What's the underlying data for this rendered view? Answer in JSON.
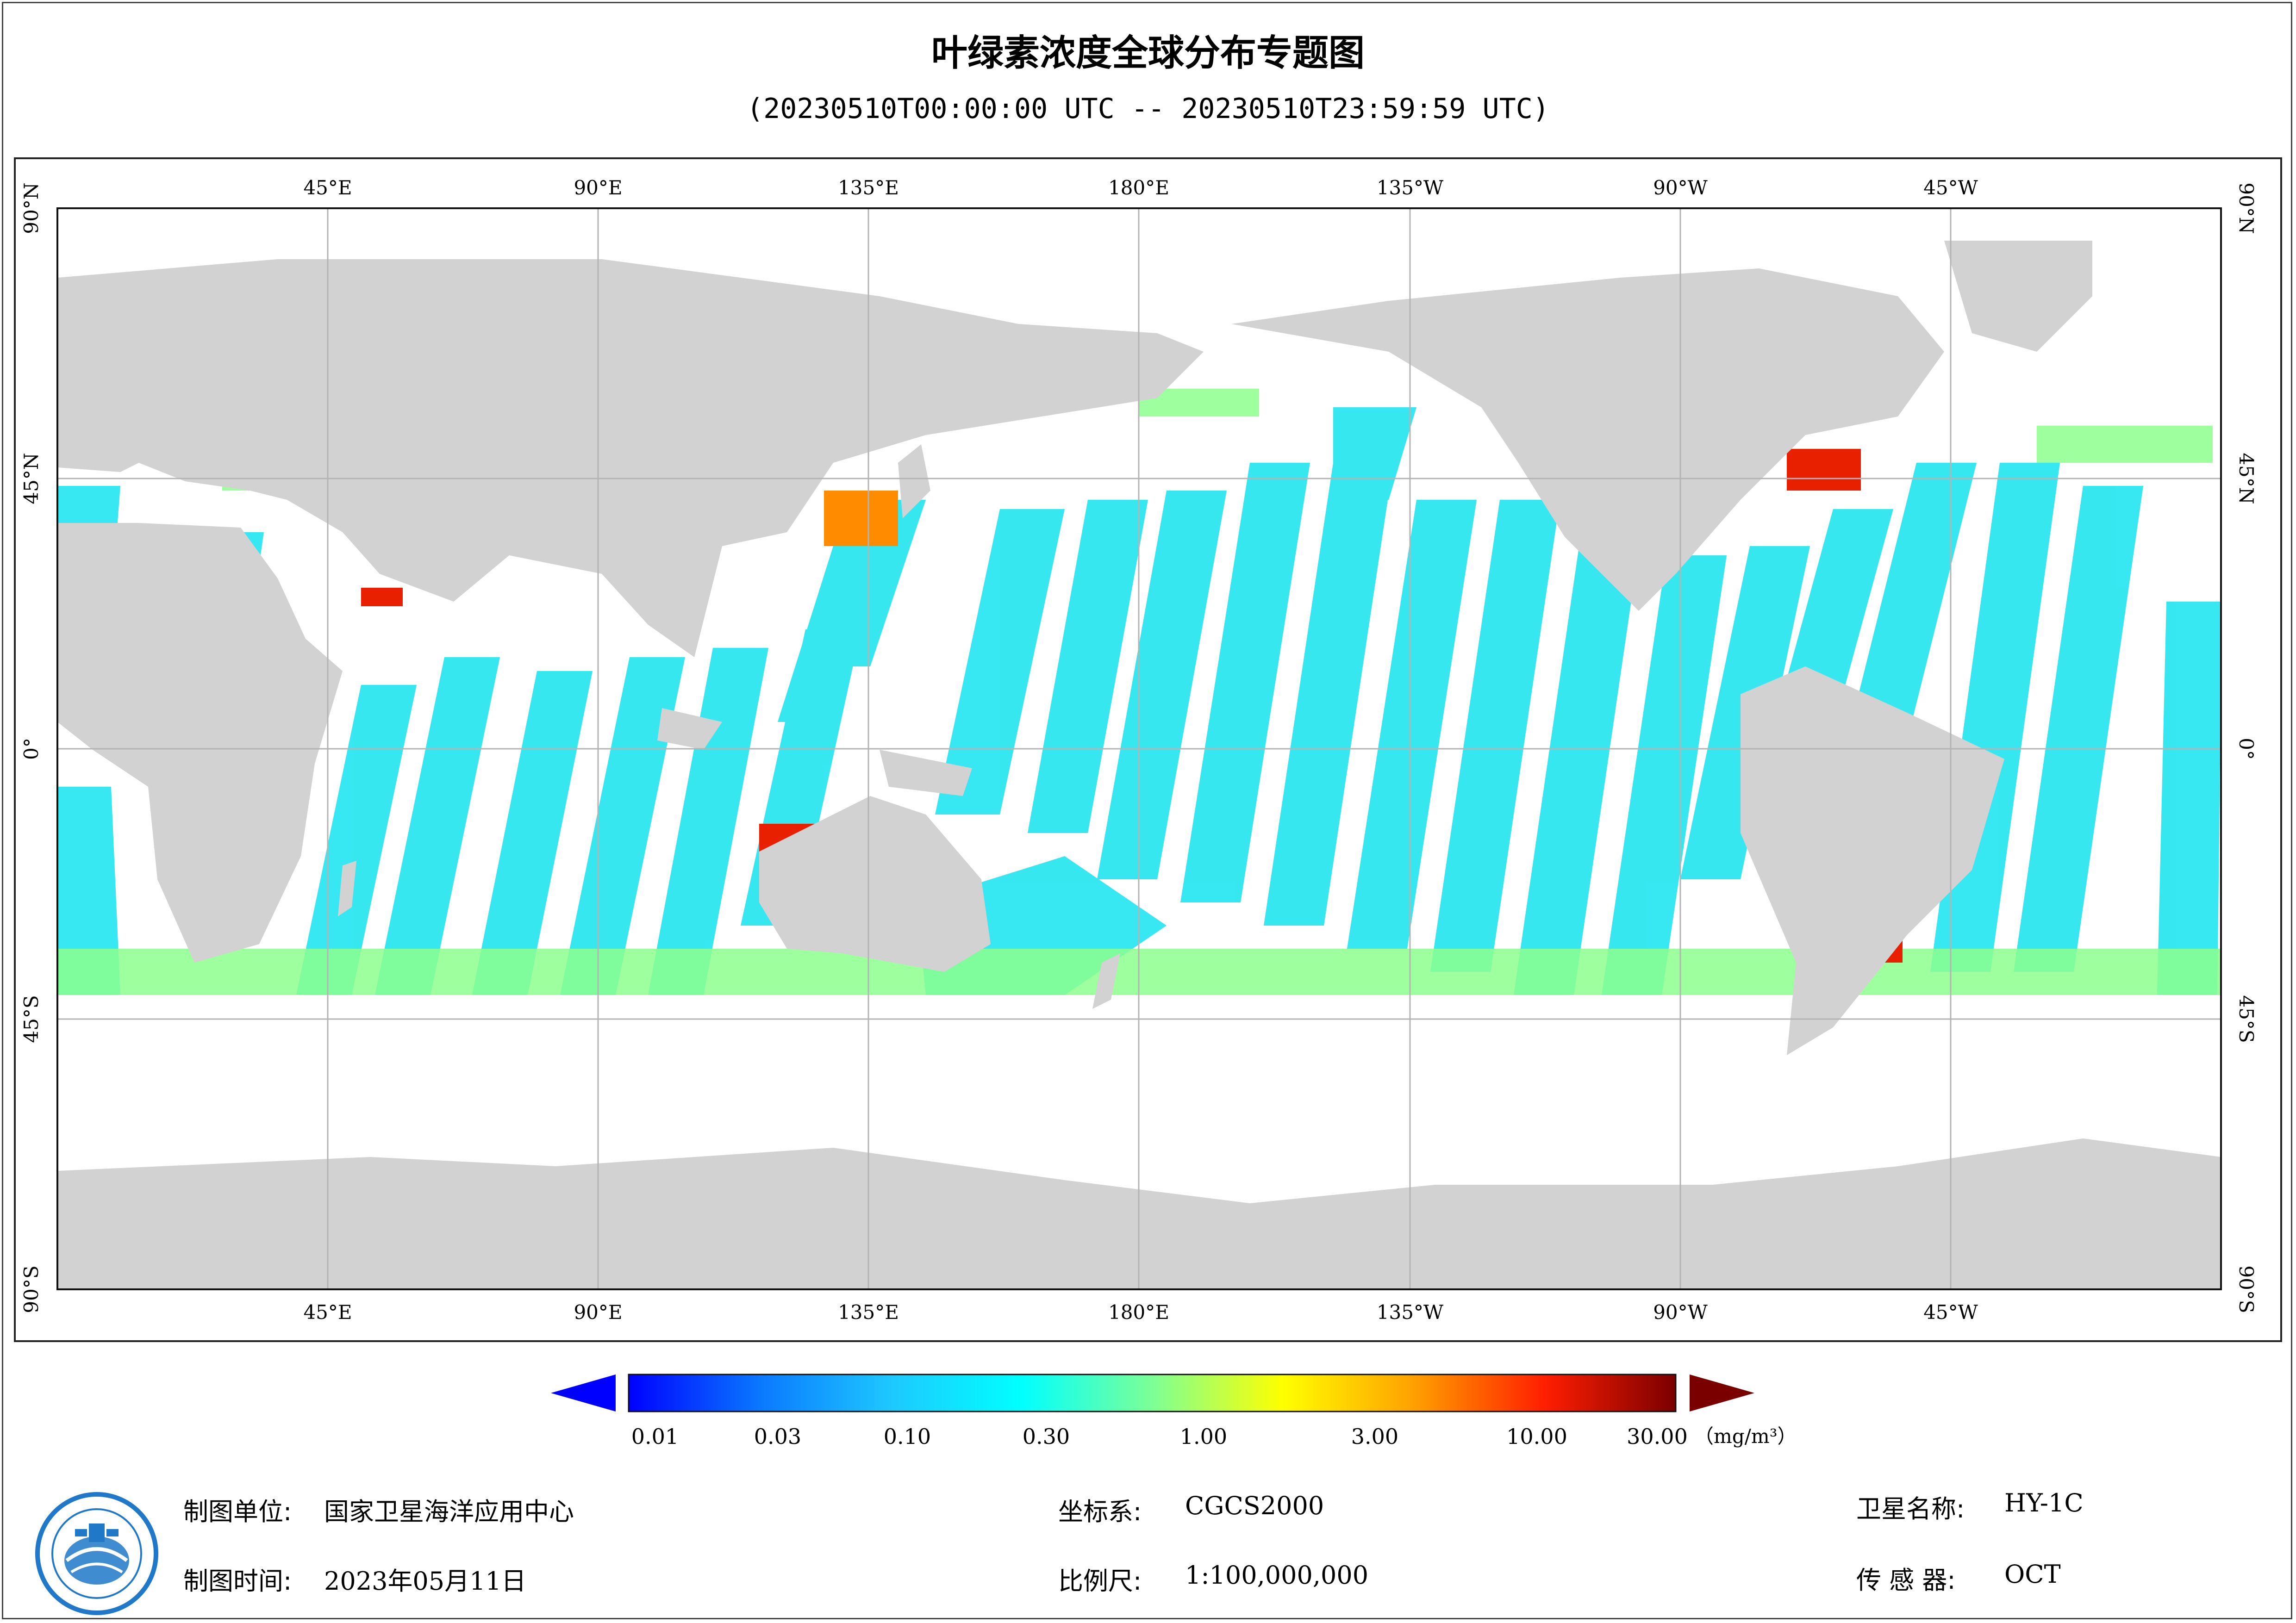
{
  "title": "叶绿素浓度全球分布专题图",
  "subtitle": "(20230510T00:00:00 UTC -- 20230510T23:59:59 UTC)",
  "map": {
    "top_longitude_labels": [
      "45°E",
      "90°E",
      "135°E",
      "180°E",
      "135°W",
      "90°W",
      "45°W"
    ],
    "bottom_longitude_labels": [
      "45°E",
      "90°E",
      "135°E",
      "180°E",
      "135°W",
      "90°W",
      "45°W"
    ],
    "latitude_labels": [
      "90°N",
      "45°N",
      "0°",
      "45°S",
      "90°S"
    ],
    "colors": {
      "land": "#d2d2d2",
      "ocean_no_data": "#ffffff",
      "grid": "#b4b4b4"
    }
  },
  "colorbar": {
    "tick_labels": [
      "0.01",
      "0.03",
      "0.10",
      "0.30",
      "1.00",
      "3.00",
      "10.00",
      "30.00"
    ],
    "unit": "（mg/m³）",
    "stops": [
      "#0000ff",
      "#0a78ff",
      "#1ec8ff",
      "#00ffff",
      "#7dff96",
      "#ffff00",
      "#ffa000",
      "#ff1e00",
      "#7a0000"
    ],
    "under_color": "#0000ff",
    "over_color": "#7a0000"
  },
  "footer": {
    "unit_label": "制图单位:",
    "unit_value": "国家卫星海洋应用中心",
    "time_label": "制图时间:",
    "time_value": "2023年05月11日",
    "crs_label": "坐标系:",
    "crs_value": "CGCS2000",
    "scale_label": "比例尺:",
    "scale_value": "1:100,000,000",
    "satellite_label": "卫星名称:",
    "satellite_value": "HY-1C",
    "sensor_label": "传 感 器:",
    "sensor_value": "OCT"
  },
  "logo": {
    "icon": "nsoas-logo-icon",
    "color": "#1f78c8"
  }
}
